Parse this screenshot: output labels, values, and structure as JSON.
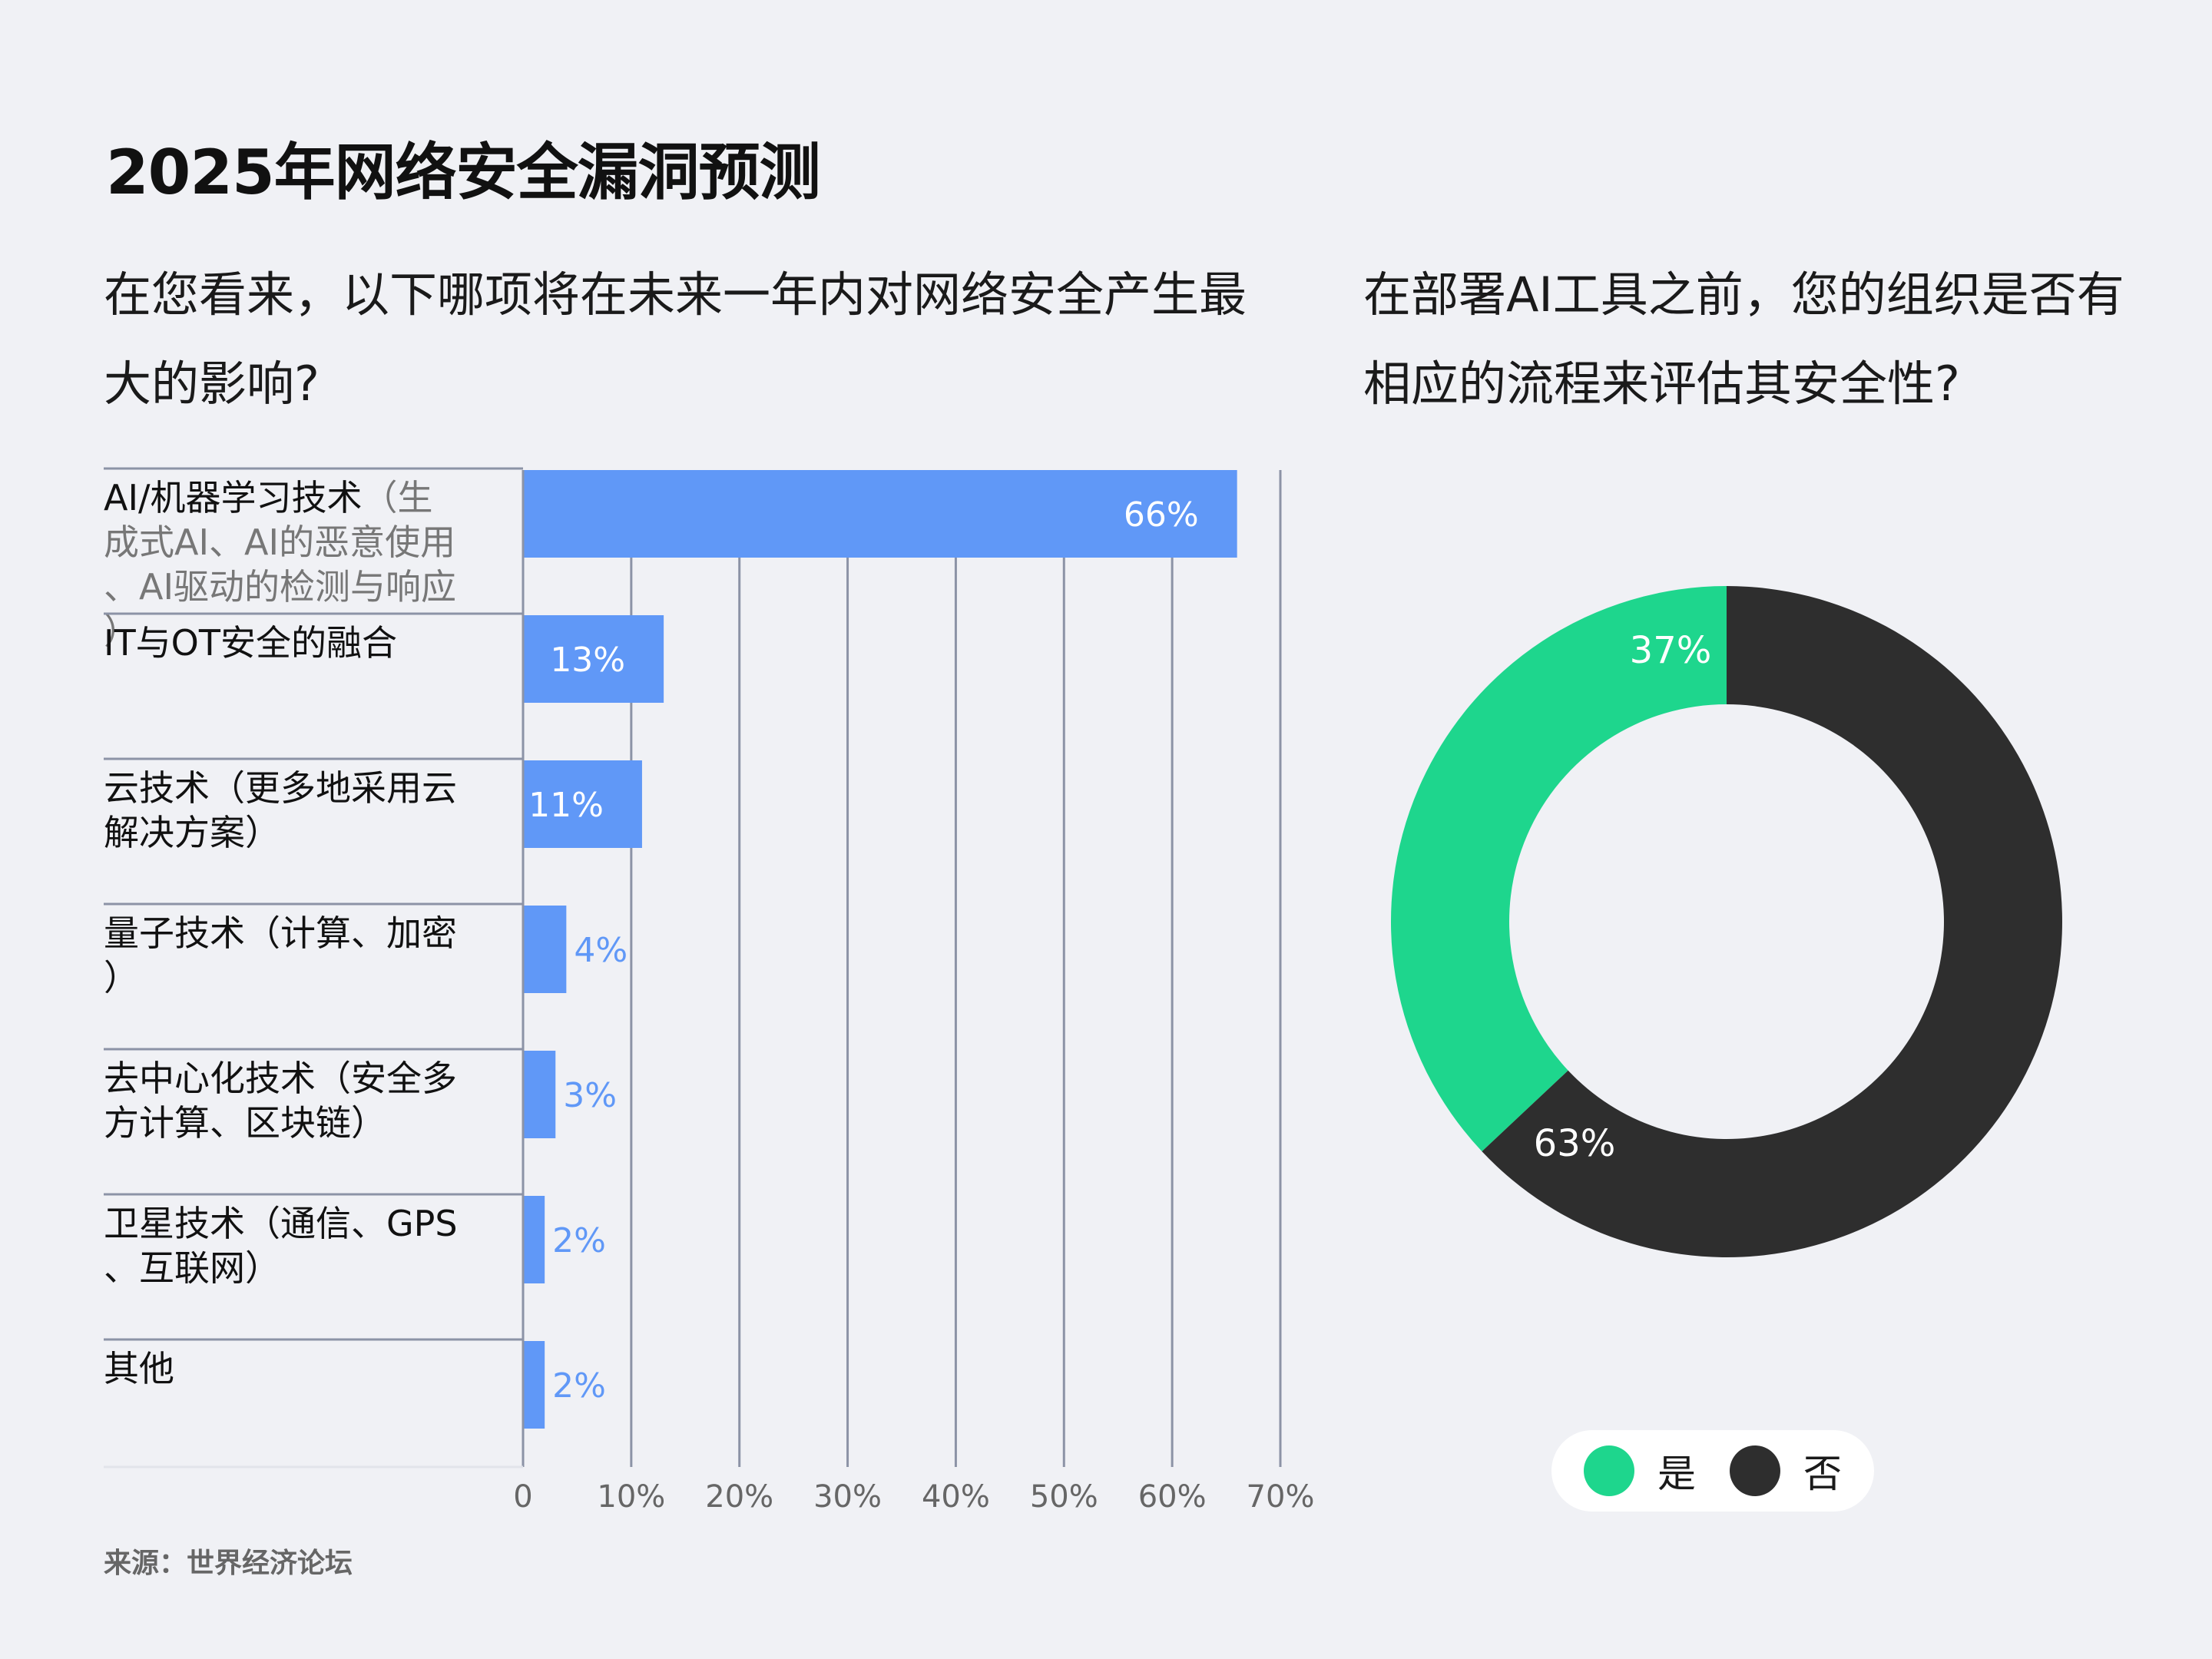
{
  "title": "2025年网络安全漏洞预测",
  "source": "来源：世界经济论坛",
  "colors": {
    "bar": "#6098f7",
    "yes": "#1ed68d",
    "no": "#2e2e2e",
    "grid": "#8c93a6"
  },
  "chart_data": [
    {
      "type": "bar",
      "orientation": "horizontal",
      "title": "在您看来，以下哪项将在未来一年内对网络安全产生最大的影响?",
      "categories": [
        {
          "main": "AI/机器学习技术",
          "detail": "（生成式AI、AI的恶意使用、AI驱动的检测与响应）"
        },
        {
          "main": "IT与OT安全的融合",
          "detail": ""
        },
        {
          "main": "云技术（更多地采用云解决方案）",
          "detail": ""
        },
        {
          "main": "量子技术（计算、加密）",
          "detail": ""
        },
        {
          "main": "去中心化技术（安全多方计算、区块链）",
          "detail": ""
        },
        {
          "main": "卫星技术（通信、GPS、互联网）",
          "detail": ""
        },
        {
          "main": "其他",
          "detail": ""
        }
      ],
      "values": [
        66,
        13,
        11,
        4,
        3,
        2,
        2
      ],
      "value_labels": [
        "66%",
        "13%",
        "11%",
        "4%",
        "3%",
        "2%",
        "2%"
      ],
      "xlim": [
        0,
        70
      ],
      "ticks": [
        "0",
        "10%",
        "20%",
        "30%",
        "40%",
        "50%",
        "60%",
        "70%"
      ],
      "grid": true
    },
    {
      "type": "pie",
      "style": "donut",
      "title": "在部署AI工具之前，您的组织是否有相应的流程来评估其安全性?",
      "labels": [
        "是",
        "否"
      ],
      "values": [
        37,
        63
      ],
      "value_labels": [
        "37%",
        "63%"
      ],
      "legend": "bottom"
    }
  ]
}
